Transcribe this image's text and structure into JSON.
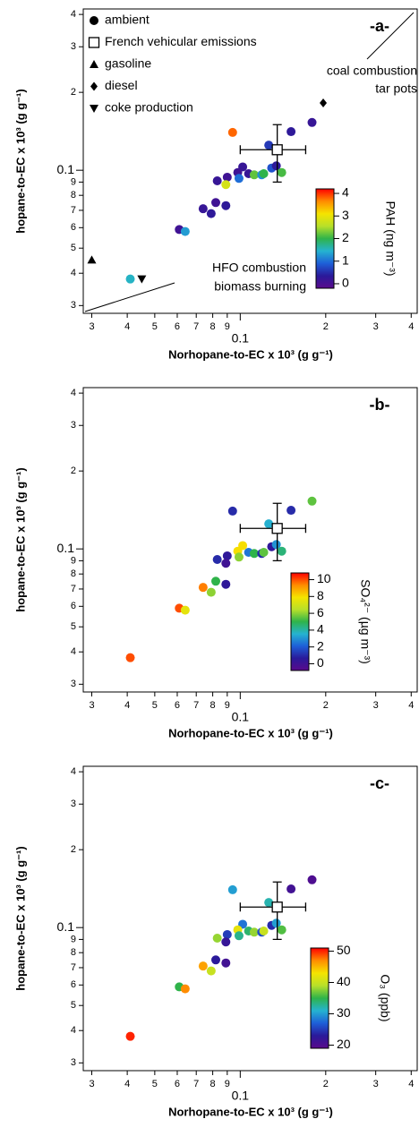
{
  "chart_data": [
    {
      "type": "scatter",
      "panel_label": "-a-",
      "xlabel": "Norhopane-to-EC x 10³ (g g⁻¹)",
      "ylabel": "hopane-to-EC x 10³ (g g⁻¹)",
      "xscale": "log",
      "yscale": "log",
      "xlim": [
        0.028,
        0.42
      ],
      "ylim": [
        0.028,
        0.42
      ],
      "xticks": [
        {
          "value": 0.03,
          "label": "3"
        },
        {
          "value": 0.04,
          "label": "4"
        },
        {
          "value": 0.05,
          "label": "5"
        },
        {
          "value": 0.06,
          "label": "6"
        },
        {
          "value": 0.07,
          "label": "7"
        },
        {
          "value": 0.08,
          "label": "8"
        },
        {
          "value": 0.09,
          "label": "9"
        },
        0.1,
        {
          "value": 0.2,
          "label": "2"
        },
        {
          "value": 0.3,
          "label": "3"
        },
        {
          "value": 0.4,
          "label": "4"
        }
      ],
      "yticks": [
        {
          "value": 0.03,
          "label": "3"
        },
        {
          "value": 0.04,
          "label": "4"
        },
        {
          "value": 0.05,
          "label": "5"
        },
        {
          "value": 0.06,
          "label": "6"
        },
        {
          "value": 0.07,
          "label": "7"
        },
        {
          "value": 0.08,
          "label": "8"
        },
        {
          "value": 0.09,
          "label": "9"
        },
        0.1,
        {
          "value": 0.2,
          "label": "2"
        },
        {
          "value": 0.3,
          "label": "3"
        },
        {
          "value": 0.4,
          "label": "4"
        }
      ],
      "series": [
        {
          "name": "ambient",
          "marker": "circle",
          "x": [
            0.094,
            0.126,
            0.151,
            0.179,
            0.102,
            0.107,
            0.112,
            0.119,
            0.121,
            0.129,
            0.134,
            0.14,
            0.098,
            0.099,
            0.09,
            0.083,
            0.089,
            0.082,
            0.074,
            0.079,
            0.089,
            0.061,
            0.064,
            0.041
          ],
          "values": [
            0.14,
            0.125,
            0.141,
            0.153,
            0.103,
            0.097,
            0.096,
            0.096,
            0.097,
            0.102,
            0.104,
            0.098,
            0.098,
            0.093,
            0.094,
            0.091,
            0.088,
            0.075,
            0.071,
            0.068,
            0.073,
            0.059,
            0.058,
            0.038
          ],
          "color_values": [
            3.8,
            0.6,
            0.3,
            0.2,
            0.2,
            0.2,
            2.2,
            1.2,
            2.0,
            0.8,
            0.3,
            2.1,
            0.1,
            1.0,
            0.1,
            0.2,
            2.8,
            0.1,
            0.2,
            0.3,
            0.3,
            0.1,
            1.3,
            1.5
          ]
        },
        {
          "name": "French vehicular emissions",
          "marker": "square",
          "color": "#ffffff",
          "x": [
            0.135
          ],
          "values": [
            0.12
          ],
          "xerr": [
            0.035
          ],
          "yerr": [
            0.03
          ]
        },
        {
          "name": "gasoline",
          "marker": "triangle",
          "color": "#000000",
          "x": [
            0.03
          ],
          "values": [
            0.045
          ]
        },
        {
          "name": "diesel",
          "marker": "diamond",
          "color": "#000000",
          "x": [
            0.196
          ],
          "values": [
            0.182
          ]
        },
        {
          "name": "coke production",
          "marker": "triangle-down",
          "color": "#000000",
          "x": [
            0.045
          ],
          "values": [
            0.038
          ]
        }
      ],
      "legend": true,
      "annotations": [
        "coal combustion",
        "tar pots",
        "HFO combustion",
        "biomass burning"
      ],
      "colorbar": {
        "label": "PAH (ng m⁻³)",
        "lim": [
          -0.2,
          4.2
        ],
        "ticks": [
          0,
          1,
          2,
          3,
          4
        ],
        "colormap": [
          "#5a0a8c",
          "#2a1a9a",
          "#1e5fd8",
          "#25b3d0",
          "#2fb34a",
          "#b8e02a",
          "#f5e400",
          "#ff8c00",
          "#ff0000"
        ]
      }
    },
    {
      "type": "scatter",
      "panel_label": "-b-",
      "xlabel": "Norhopane-to-EC x 10³ (g g⁻¹)",
      "ylabel": "hopane-to-EC x 10³ (g g⁻¹)",
      "xscale": "log",
      "yscale": "log",
      "xlim": [
        0.028,
        0.42
      ],
      "ylim": [
        0.028,
        0.42
      ],
      "xticks": [
        {
          "value": 0.03,
          "label": "3"
        },
        {
          "value": 0.04,
          "label": "4"
        },
        {
          "value": 0.05,
          "label": "5"
        },
        {
          "value": 0.06,
          "label": "6"
        },
        {
          "value": 0.07,
          "label": "7"
        },
        {
          "value": 0.08,
          "label": "8"
        },
        {
          "value": 0.09,
          "label": "9"
        },
        0.1,
        {
          "value": 0.2,
          "label": "2"
        },
        {
          "value": 0.3,
          "label": "3"
        },
        {
          "value": 0.4,
          "label": "4"
        }
      ],
      "yticks": [
        {
          "value": 0.03,
          "label": "3"
        },
        {
          "value": 0.04,
          "label": "4"
        },
        {
          "value": 0.05,
          "label": "5"
        },
        {
          "value": 0.06,
          "label": "6"
        },
        {
          "value": 0.07,
          "label": "7"
        },
        {
          "value": 0.08,
          "label": "8"
        },
        {
          "value": 0.09,
          "label": "9"
        },
        0.1,
        {
          "value": 0.2,
          "label": "2"
        },
        {
          "value": 0.3,
          "label": "3"
        },
        {
          "value": 0.4,
          "label": "4"
        }
      ],
      "series": [
        {
          "marker": "circle",
          "x": [
            0.094,
            0.126,
            0.151,
            0.179,
            0.102,
            0.107,
            0.112,
            0.119,
            0.121,
            0.129,
            0.134,
            0.14,
            0.098,
            0.099,
            0.09,
            0.083,
            0.089,
            0.082,
            0.074,
            0.079,
            0.089,
            0.061,
            0.064,
            0.041
          ],
          "values": [
            0.14,
            0.125,
            0.141,
            0.153,
            0.103,
            0.097,
            0.096,
            0.096,
            0.097,
            0.102,
            0.104,
            0.098,
            0.098,
            0.093,
            0.094,
            0.091,
            0.088,
            0.075,
            0.071,
            0.068,
            0.073,
            0.059,
            0.058,
            0.038
          ],
          "color_values": [
            1,
            3.5,
            1,
            5.5,
            8,
            2.5,
            5,
            1,
            5.5,
            0.5,
            3,
            4.5,
            8,
            6,
            0.5,
            1,
            0,
            5,
            9.5,
            6,
            0.5,
            10,
            7.5,
            10
          ]
        },
        {
          "marker": "square",
          "color": "#ffffff",
          "x": [
            0.135
          ],
          "values": [
            0.12
          ],
          "xerr": [
            0.035
          ],
          "yerr": [
            0.03
          ]
        }
      ],
      "colorbar": {
        "label": "SO₄²⁻ (µg m⁻³)",
        "lim": [
          -0.8,
          10.8
        ],
        "ticks": [
          0,
          2,
          4,
          6,
          8,
          10
        ],
        "colormap": [
          "#5a0a8c",
          "#2a1a9a",
          "#1e5fd8",
          "#25b3d0",
          "#2fb34a",
          "#b8e02a",
          "#f5e400",
          "#ff8c00",
          "#ff0000"
        ]
      }
    },
    {
      "type": "scatter",
      "panel_label": "-c-",
      "xlabel": "Norhopane-to-EC x 10³ (g g⁻¹)",
      "ylabel": "hopane-to-EC x 10³ (g g⁻¹)",
      "xscale": "log",
      "yscale": "log",
      "xlim": [
        0.028,
        0.42
      ],
      "ylim": [
        0.028,
        0.42
      ],
      "xticks": [
        {
          "value": 0.03,
          "label": "3"
        },
        {
          "value": 0.04,
          "label": "4"
        },
        {
          "value": 0.05,
          "label": "5"
        },
        {
          "value": 0.06,
          "label": "6"
        },
        {
          "value": 0.07,
          "label": "7"
        },
        {
          "value": 0.08,
          "label": "8"
        },
        {
          "value": 0.09,
          "label": "9"
        },
        0.1,
        {
          "value": 0.2,
          "label": "2"
        },
        {
          "value": 0.3,
          "label": "3"
        },
        {
          "value": 0.4,
          "label": "4"
        }
      ],
      "yticks": [
        {
          "value": 0.03,
          "label": "3"
        },
        {
          "value": 0.04,
          "label": "4"
        },
        {
          "value": 0.05,
          "label": "5"
        },
        {
          "value": 0.06,
          "label": "6"
        },
        {
          "value": 0.07,
          "label": "7"
        },
        {
          "value": 0.08,
          "label": "8"
        },
        {
          "value": 0.09,
          "label": "9"
        },
        0.1,
        {
          "value": 0.2,
          "label": "2"
        },
        {
          "value": 0.3,
          "label": "3"
        },
        {
          "value": 0.4,
          "label": "4"
        }
      ],
      "series": [
        {
          "marker": "circle",
          "x": [
            0.094,
            0.126,
            0.151,
            0.179,
            0.102,
            0.107,
            0.112,
            0.119,
            0.121,
            0.129,
            0.134,
            0.14,
            0.098,
            0.099,
            0.09,
            0.083,
            0.089,
            0.082,
            0.074,
            0.079,
            0.089,
            0.061,
            0.064,
            0.041
          ],
          "values": [
            0.14,
            0.125,
            0.141,
            0.153,
            0.103,
            0.097,
            0.096,
            0.096,
            0.097,
            0.102,
            0.104,
            0.098,
            0.098,
            0.093,
            0.094,
            0.091,
            0.088,
            0.075,
            0.071,
            0.068,
            0.073,
            0.059,
            0.058,
            0.038
          ],
          "color_values": [
            30,
            32,
            21,
            20,
            28,
            34,
            38,
            26,
            40,
            24,
            30,
            36,
            42,
            33,
            25,
            38,
            22,
            23,
            46,
            40,
            21,
            35,
            47,
            50
          ]
        },
        {
          "marker": "square",
          "color": "#ffffff",
          "x": [
            0.135
          ],
          "values": [
            0.12
          ],
          "xerr": [
            0.035
          ],
          "yerr": [
            0.03
          ]
        }
      ],
      "colorbar": {
        "label": "O₃ (ppb)",
        "lim": [
          19,
          51
        ],
        "ticks": [
          20,
          30,
          40,
          50
        ],
        "colormap": [
          "#5a0a8c",
          "#2a1a9a",
          "#1e5fd8",
          "#25b3d0",
          "#2fb34a",
          "#b8e02a",
          "#f5e400",
          "#ff8c00",
          "#ff0000"
        ]
      }
    }
  ]
}
